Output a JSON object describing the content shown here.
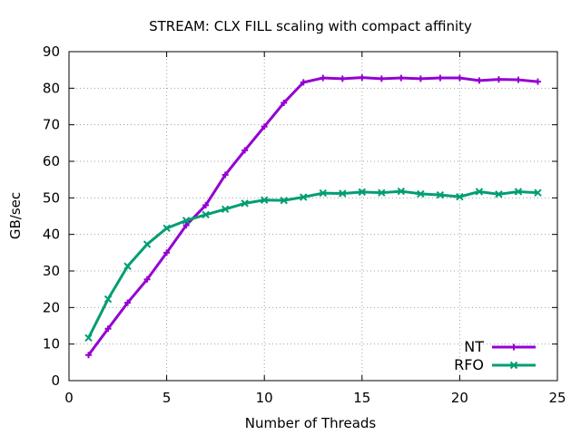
{
  "chart_data": {
    "type": "line",
    "title": "STREAM: CLX FILL scaling with compact affinity",
    "xlabel": "Number of Threads",
    "ylabel": "GB/sec",
    "xlim": [
      0,
      25
    ],
    "ylim": [
      0,
      90
    ],
    "x_ticks": [
      0,
      5,
      10,
      15,
      20,
      25
    ],
    "y_ticks": [
      0,
      10,
      20,
      30,
      40,
      50,
      60,
      70,
      80,
      90
    ],
    "x_tick_labels": [
      "0",
      "5",
      "10",
      "15",
      "20",
      "25"
    ],
    "y_tick_labels": [
      "0",
      "10",
      "20",
      "30",
      "40",
      "50",
      "60",
      "70",
      "80",
      "90"
    ],
    "grid": true,
    "legend_position": "bottom-right",
    "x": [
      1,
      2,
      3,
      4,
      5,
      6,
      7,
      8,
      9,
      10,
      11,
      12,
      13,
      14,
      15,
      16,
      17,
      18,
      19,
      20,
      21,
      22,
      23,
      24
    ],
    "series": [
      {
        "name": "NT",
        "color": "#9400d3",
        "marker": "plus",
        "values": [
          7.0,
          14.2,
          21.3,
          27.7,
          35.0,
          42.5,
          48.0,
          56.3,
          63.0,
          69.5,
          76.0,
          81.6,
          82.8,
          82.6,
          82.9,
          82.6,
          82.8,
          82.6,
          82.8,
          82.8,
          82.1,
          82.4,
          82.3,
          81.8
        ]
      },
      {
        "name": "RFO",
        "color": "#009e73",
        "marker": "x",
        "values": [
          11.7,
          22.3,
          31.3,
          37.3,
          41.7,
          43.8,
          45.4,
          46.9,
          48.5,
          49.4,
          49.3,
          50.2,
          51.3,
          51.2,
          51.6,
          51.4,
          51.8,
          51.1,
          50.8,
          50.3,
          51.7,
          51.0,
          51.7,
          51.4
        ]
      }
    ]
  }
}
